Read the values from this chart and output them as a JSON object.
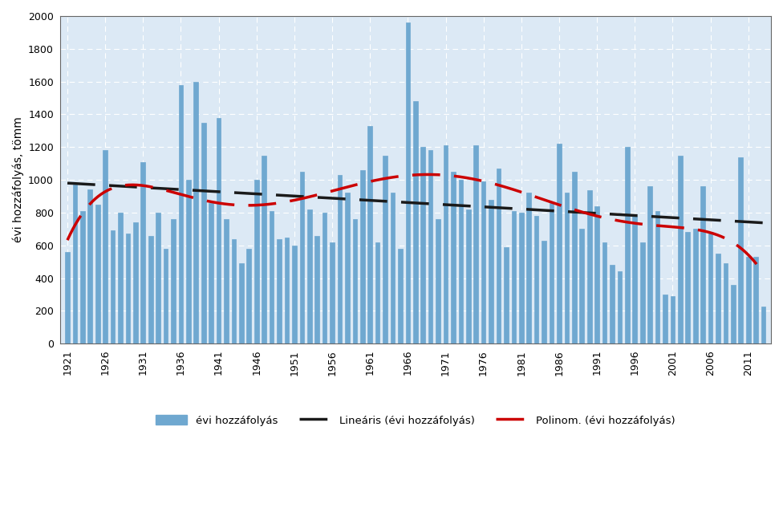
{
  "years": [
    1921,
    1922,
    1923,
    1924,
    1925,
    1926,
    1927,
    1928,
    1929,
    1930,
    1931,
    1932,
    1933,
    1934,
    1935,
    1936,
    1937,
    1938,
    1939,
    1940,
    1941,
    1942,
    1943,
    1944,
    1945,
    1946,
    1947,
    1948,
    1949,
    1950,
    1951,
    1952,
    1953,
    1954,
    1955,
    1956,
    1957,
    1958,
    1959,
    1960,
    1961,
    1962,
    1963,
    1964,
    1965,
    1966,
    1967,
    1968,
    1969,
    1970,
    1971,
    1972,
    1973,
    1974,
    1975,
    1976,
    1977,
    1978,
    1979,
    1980,
    1981,
    1982,
    1983,
    1984,
    1985,
    1986,
    1987,
    1988,
    1989,
    1990,
    1991,
    1992,
    1993,
    1994,
    1995,
    1996,
    1997,
    1998,
    1999,
    2000,
    2001,
    2002,
    2003,
    2004,
    2005,
    2006,
    2007,
    2008,
    2009,
    2010,
    2011,
    2012,
    2013
  ],
  "values": [
    560,
    970,
    810,
    940,
    850,
    1180,
    690,
    800,
    670,
    740,
    1110,
    660,
    800,
    580,
    760,
    1580,
    1000,
    1600,
    1350,
    860,
    1380,
    760,
    640,
    490,
    580,
    1000,
    1150,
    810,
    640,
    650,
    600,
    1050,
    820,
    660,
    800,
    620,
    1030,
    920,
    760,
    1060,
    1330,
    620,
    1150,
    920,
    580,
    1960,
    1480,
    1200,
    1180,
    760,
    1210,
    1050,
    1000,
    820,
    1210,
    990,
    880,
    1070,
    590,
    810,
    800,
    920,
    780,
    630,
    860,
    1220,
    920,
    1050,
    700,
    935,
    840,
    620,
    480,
    440,
    1200,
    780,
    620,
    960,
    810,
    300,
    290,
    1150,
    680,
    700,
    960,
    680,
    550,
    490,
    360,
    1140,
    530,
    530,
    225
  ],
  "bar_color": "#6fa8d0",
  "bar_edge_color": "#5090b8",
  "linear_color": "#1a1a1a",
  "poly_color": "#cc0000",
  "ylabel": "évi hozzáfolyás, tömm",
  "yticks": [
    0,
    200,
    400,
    600,
    800,
    1000,
    1200,
    1400,
    1600,
    1800,
    2000
  ],
  "background_color": "#ffffff",
  "plot_bg_color": "#dce9f5",
  "grid_color": "#ffffff",
  "legend_labels": [
    "évi hozzáfolyás",
    "Lineáris (évi hozzáfolyás)",
    "Polinom. (évi hozzáfolyás)"
  ]
}
